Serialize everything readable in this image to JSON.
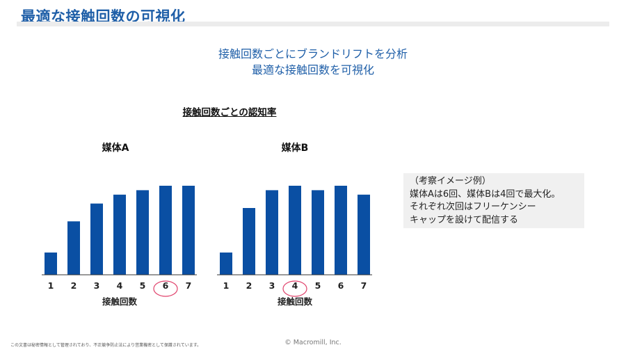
{
  "page": {
    "title": "最適な接触回数の可視化",
    "subtitle_lines": [
      "接触回数ごとにブランドリフトを分析",
      "最適な接触回数を可視化"
    ],
    "section_heading": "接触回数ごとの認知率",
    "note_lines": [
      "（考察イメージ例）",
      "媒体Aは6回、媒体Bは4回で最大化。",
      "それぞれ次回はフリーケンシー",
      "キャップを設けて配信する"
    ],
    "footer_note": "この文書は秘密情報として管理されており、不正競争防止法により営業機密として保護されています。",
    "copyright": "© Macromill, Inc."
  },
  "colors": {
    "title": "#1f5fa8",
    "bar": "#0a4fa3",
    "highlight_circle": "#e0406a",
    "axis": "#333333"
  },
  "chart_data": [
    {
      "type": "bar",
      "title": "媒体A",
      "xlabel": "接触回数",
      "ylabel": "",
      "categories": [
        "1",
        "2",
        "3",
        "4",
        "5",
        "6",
        "7"
      ],
      "values": [
        25,
        60,
        80,
        90,
        95,
        100,
        100
      ],
      "ylim": [
        0,
        100
      ],
      "highlighted_category": "6",
      "grid": false
    },
    {
      "type": "bar",
      "title": "媒体B",
      "xlabel": "接触回数",
      "ylabel": "",
      "categories": [
        "1",
        "2",
        "3",
        "4",
        "5",
        "6",
        "7"
      ],
      "values": [
        25,
        75,
        95,
        100,
        95,
        100,
        90
      ],
      "ylim": [
        0,
        100
      ],
      "highlighted_category": "4",
      "grid": false
    }
  ]
}
